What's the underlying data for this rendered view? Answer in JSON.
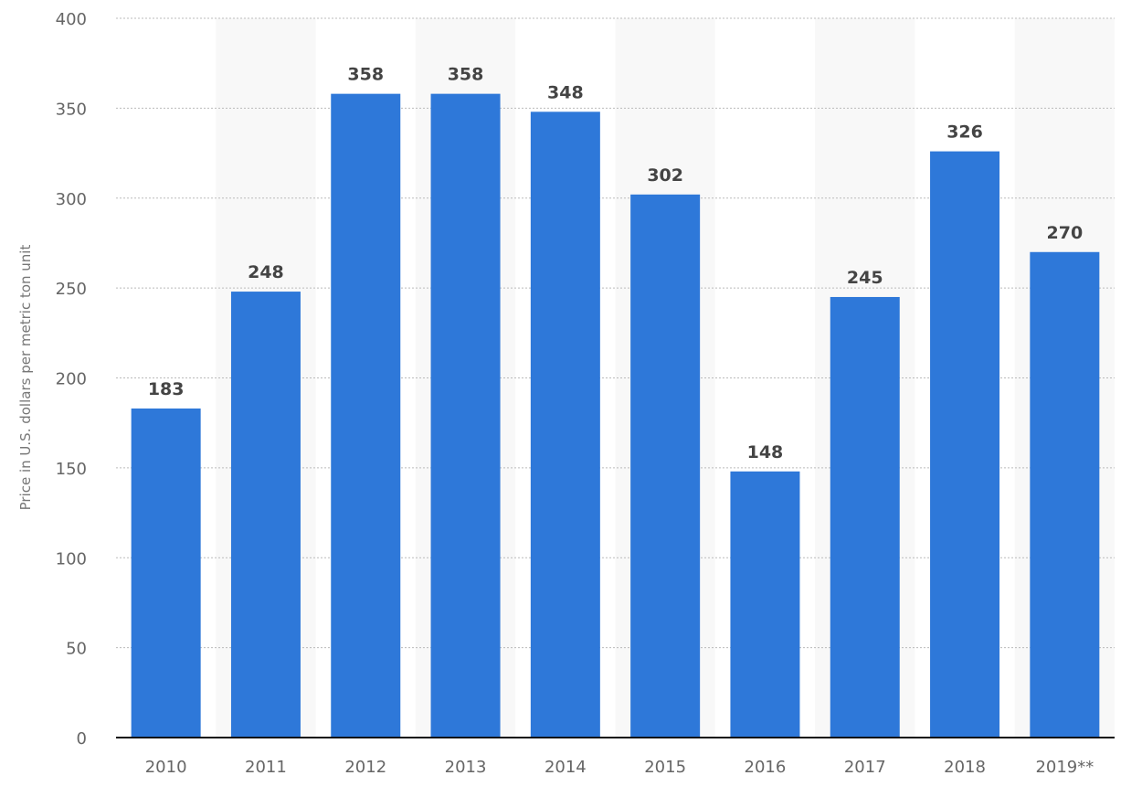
{
  "chart_data": {
    "type": "bar",
    "title": "",
    "xlabel": "",
    "ylabel": "Price in U.S. dollars per metric ton unit",
    "categories": [
      "2010",
      "2011",
      "2012",
      "2013",
      "2014",
      "2015",
      "2016",
      "2017",
      "2018",
      "2019**"
    ],
    "values": [
      183,
      248,
      358,
      358,
      348,
      302,
      148,
      245,
      326,
      270
    ],
    "ylim": [
      0,
      400
    ],
    "yticks": [
      0,
      50,
      100,
      150,
      200,
      250,
      300,
      350,
      400
    ],
    "grid": true,
    "colors": {
      "bar": "#2e78d9",
      "band": "#f8f8f8",
      "grid": "#bbbbbb",
      "axis": "#111111"
    }
  }
}
